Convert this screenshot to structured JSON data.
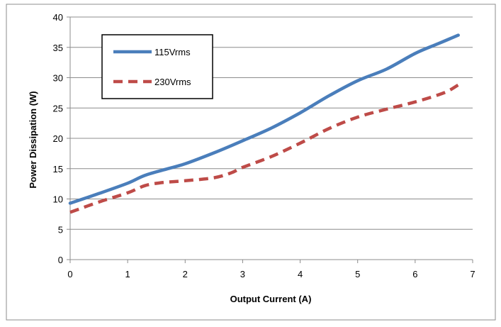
{
  "chart_data": {
    "type": "line",
    "title": "",
    "xlabel": "Output Current (A)",
    "ylabel": "Power Dissipation (W)",
    "xlim": [
      0,
      7
    ],
    "ylim": [
      0,
      40
    ],
    "x_ticks": [
      "0",
      "1",
      "2",
      "3",
      "4",
      "5",
      "6",
      "7"
    ],
    "y_ticks": [
      "0",
      "5",
      "10",
      "15",
      "20",
      "25",
      "30",
      "35",
      "40"
    ],
    "grid": "horizontal",
    "legend_position": "upper-left",
    "series": [
      {
        "name": "115Vrms",
        "color": "#4a7ebb",
        "style": "solid",
        "x": [
          0,
          0.5,
          1.0,
          1.3,
          1.7,
          2.0,
          2.5,
          3.0,
          3.5,
          4.0,
          4.5,
          5.0,
          5.5,
          6.0,
          6.4,
          6.75
        ],
        "y": [
          9.3,
          10.9,
          12.6,
          13.9,
          15.0,
          15.8,
          17.6,
          19.6,
          21.7,
          24.2,
          27.0,
          29.5,
          31.4,
          34.0,
          35.6,
          37.0
        ]
      },
      {
        "name": "230Vrms",
        "color": "#be4b48",
        "style": "dashed",
        "x": [
          0,
          0.5,
          1.0,
          1.3,
          1.6,
          2.0,
          2.5,
          2.8,
          3.0,
          3.5,
          4.0,
          4.5,
          5.0,
          5.5,
          6.0,
          6.5,
          6.75
        ],
        "y": [
          7.8,
          9.5,
          11.0,
          12.2,
          12.7,
          13.0,
          13.5,
          14.3,
          15.2,
          17.0,
          19.2,
          21.6,
          23.5,
          24.8,
          26.0,
          27.5,
          28.8
        ]
      }
    ]
  }
}
